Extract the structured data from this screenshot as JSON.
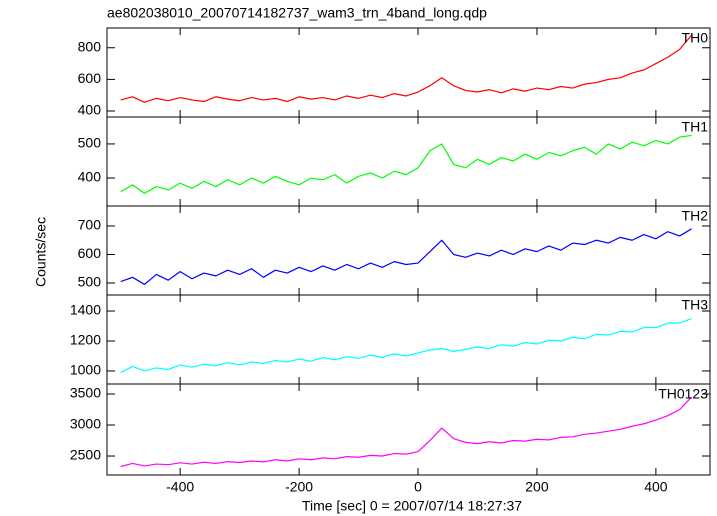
{
  "chart_data": [
    {
      "type": "line",
      "title": "ae802038010_20070714182737_wam3_trn_4band_long.qdp",
      "x": [
        -500,
        -480,
        -460,
        -440,
        -420,
        -400,
        -380,
        -360,
        -340,
        -320,
        -300,
        -280,
        -260,
        -240,
        -220,
        -200,
        -180,
        -160,
        -140,
        -120,
        -100,
        -80,
        -60,
        -40,
        -20,
        0,
        20,
        40,
        60,
        80,
        100,
        120,
        140,
        160,
        180,
        200,
        220,
        240,
        260,
        280,
        300,
        320,
        340,
        360,
        380,
        400,
        420,
        440,
        460
      ],
      "series": [
        {
          "name": "TH0",
          "color": "#ff0000",
          "values": [
            470,
            490,
            455,
            480,
            465,
            485,
            470,
            460,
            490,
            475,
            465,
            485,
            470,
            480,
            460,
            490,
            475,
            485,
            470,
            495,
            480,
            500,
            485,
            510,
            495,
            520,
            560,
            610,
            560,
            530,
            520,
            535,
            515,
            540,
            525,
            545,
            535,
            555,
            545,
            570,
            580,
            600,
            610,
            640,
            660,
            700,
            740,
            790,
            880
          ]
        }
      ],
      "xlim": [
        -523,
        491
      ],
      "xticks": [
        -400,
        -200,
        0,
        200,
        400
      ],
      "ylim": [
        362,
        925
      ],
      "yticks": [
        400,
        600,
        800
      ]
    },
    {
      "type": "line",
      "x": [
        -500,
        -480,
        -460,
        -440,
        -420,
        -400,
        -380,
        -360,
        -340,
        -320,
        -300,
        -280,
        -260,
        -240,
        -220,
        -200,
        -180,
        -160,
        -140,
        -120,
        -100,
        -80,
        -60,
        -40,
        -20,
        0,
        20,
        40,
        60,
        80,
        100,
        120,
        140,
        160,
        180,
        200,
        220,
        240,
        260,
        280,
        300,
        320,
        340,
        360,
        380,
        400,
        420,
        440,
        460
      ],
      "series": [
        {
          "name": "TH1",
          "color": "#00ff00",
          "values": [
            360,
            380,
            355,
            375,
            365,
            385,
            370,
            390,
            375,
            395,
            380,
            400,
            385,
            405,
            390,
            380,
            400,
            395,
            410,
            385,
            405,
            415,
            400,
            420,
            410,
            430,
            480,
            500,
            440,
            430,
            455,
            440,
            460,
            450,
            470,
            455,
            475,
            465,
            480,
            490,
            470,
            500,
            485,
            505,
            495,
            510,
            500,
            520,
            525
          ]
        }
      ],
      "xlim": [
        -523,
        491
      ],
      "xticks": [
        -400,
        -200,
        0,
        200,
        400
      ],
      "ylim": [
        318,
        579
      ],
      "yticks": [
        400,
        500
      ]
    },
    {
      "type": "line",
      "ylabel": "Counts/sec",
      "x": [
        -500,
        -480,
        -460,
        -440,
        -420,
        -400,
        -380,
        -360,
        -340,
        -320,
        -300,
        -280,
        -260,
        -240,
        -220,
        -200,
        -180,
        -160,
        -140,
        -120,
        -100,
        -80,
        -60,
        -40,
        -20,
        0,
        20,
        40,
        60,
        80,
        100,
        120,
        140,
        160,
        180,
        200,
        220,
        240,
        260,
        280,
        300,
        320,
        340,
        360,
        380,
        400,
        420,
        440,
        460
      ],
      "series": [
        {
          "name": "TH2",
          "color": "#0000ff",
          "values": [
            505,
            520,
            495,
            530,
            510,
            540,
            515,
            535,
            525,
            545,
            530,
            550,
            520,
            545,
            535,
            555,
            540,
            560,
            545,
            565,
            550,
            570,
            555,
            575,
            565,
            570,
            610,
            650,
            600,
            590,
            605,
            595,
            615,
            600,
            620,
            610,
            630,
            615,
            640,
            635,
            650,
            640,
            660,
            650,
            670,
            655,
            680,
            665,
            690
          ]
        }
      ],
      "xlim": [
        -523,
        491
      ],
      "xticks": [
        -400,
        -200,
        0,
        200,
        400
      ],
      "ylim": [
        458,
        770
      ],
      "yticks": [
        500,
        600,
        700
      ]
    },
    {
      "type": "line",
      "x": [
        -500,
        -480,
        -460,
        -440,
        -420,
        -400,
        -380,
        -360,
        -340,
        -320,
        -300,
        -280,
        -260,
        -240,
        -220,
        -200,
        -180,
        -160,
        -140,
        -120,
        -100,
        -80,
        -60,
        -40,
        -20,
        0,
        20,
        40,
        60,
        80,
        100,
        120,
        140,
        160,
        180,
        200,
        220,
        240,
        260,
        280,
        300,
        320,
        340,
        360,
        380,
        400,
        420,
        440,
        460
      ],
      "series": [
        {
          "name": "TH3",
          "color": "#00ffff",
          "values": [
            990,
            1030,
            1000,
            1020,
            1010,
            1040,
            1025,
            1045,
            1035,
            1055,
            1040,
            1060,
            1050,
            1070,
            1060,
            1080,
            1065,
            1090,
            1075,
            1095,
            1085,
            1105,
            1090,
            1115,
            1100,
            1120,
            1140,
            1150,
            1130,
            1145,
            1160,
            1150,
            1175,
            1165,
            1190,
            1180,
            1205,
            1200,
            1225,
            1215,
            1245,
            1240,
            1265,
            1260,
            1290,
            1290,
            1320,
            1320,
            1350
          ]
        }
      ],
      "xlim": [
        -523,
        491
      ],
      "xticks": [
        -400,
        -200,
        0,
        200,
        400
      ],
      "ylim": [
        913,
        1507
      ],
      "yticks": [
        1000,
        1200,
        1400
      ]
    },
    {
      "type": "line",
      "xlabel": "Time [sec] 0 = 2007/07/14 18:27:37",
      "x": [
        -500,
        -480,
        -460,
        -440,
        -420,
        -400,
        -380,
        -360,
        -340,
        -320,
        -300,
        -280,
        -260,
        -240,
        -220,
        -200,
        -180,
        -160,
        -140,
        -120,
        -100,
        -80,
        -60,
        -40,
        -20,
        0,
        20,
        40,
        60,
        80,
        100,
        120,
        140,
        160,
        180,
        200,
        220,
        240,
        260,
        280,
        300,
        320,
        340,
        360,
        380,
        400,
        420,
        440,
        460
      ],
      "series": [
        {
          "name": "TH0123",
          "color": "#ff00ff",
          "values": [
            2330,
            2380,
            2340,
            2370,
            2360,
            2390,
            2370,
            2400,
            2380,
            2410,
            2395,
            2420,
            2405,
            2440,
            2420,
            2455,
            2440,
            2470,
            2455,
            2490,
            2480,
            2510,
            2500,
            2540,
            2530,
            2570,
            2750,
            2950,
            2780,
            2720,
            2700,
            2730,
            2710,
            2750,
            2740,
            2770,
            2760,
            2800,
            2810,
            2850,
            2870,
            2900,
            2930,
            2980,
            3020,
            3080,
            3150,
            3250,
            3450
          ]
        }
      ],
      "xlim": [
        -523,
        491
      ],
      "xticks": [
        -400,
        -200,
        0,
        200,
        400
      ],
      "ylim": [
        2194,
        3661
      ],
      "yticks": [
        2500,
        3000,
        3500
      ]
    }
  ]
}
